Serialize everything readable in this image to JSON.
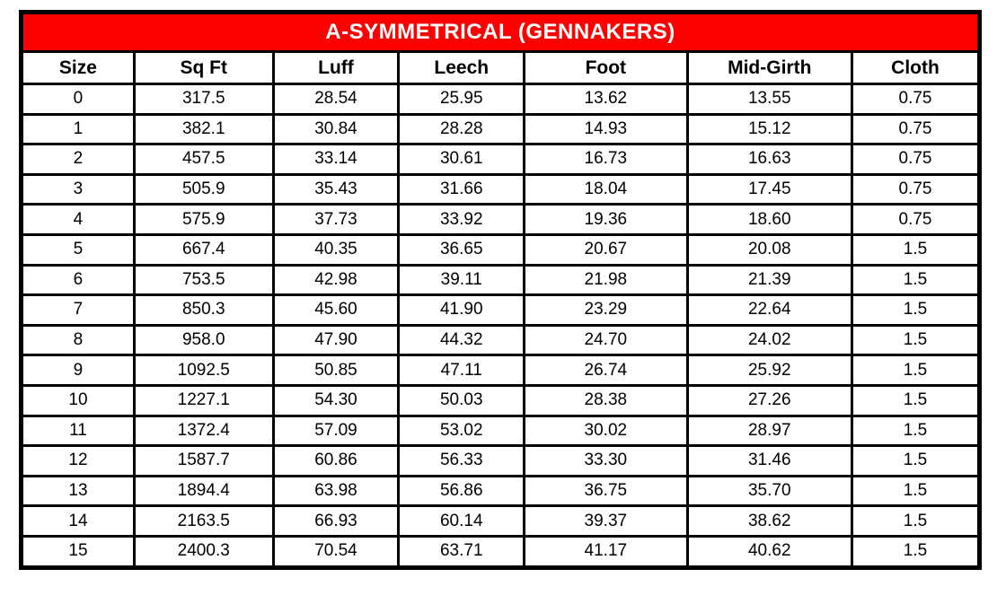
{
  "table": {
    "title": "A-SYMMETRICAL (GENNAKERS)",
    "title_bg_color": "#fd0000",
    "title_text_color": "#ffffff",
    "border_color": "#000000",
    "columns": [
      "Size",
      "Sq Ft",
      "Luff",
      "Leech",
      "Foot",
      "Mid-Girth",
      "Cloth"
    ],
    "column_widths_pct": [
      11.8,
      14.5,
      13.1,
      13.1,
      17.0,
      17.2,
      13.3
    ],
    "rows": [
      [
        "0",
        "317.5",
        "28.54",
        "25.95",
        "13.62",
        "13.55",
        "0.75"
      ],
      [
        "1",
        "382.1",
        "30.84",
        "28.28",
        "14.93",
        "15.12",
        "0.75"
      ],
      [
        "2",
        "457.5",
        "33.14",
        "30.61",
        "16.73",
        "16.63",
        "0.75"
      ],
      [
        "3",
        "505.9",
        "35.43",
        "31.66",
        "18.04",
        "17.45",
        "0.75"
      ],
      [
        "4",
        "575.9",
        "37.73",
        "33.92",
        "19.36",
        "18.60",
        "0.75"
      ],
      [
        "5",
        "667.4",
        "40.35",
        "36.65",
        "20.67",
        "20.08",
        "1.5"
      ],
      [
        "6",
        "753.5",
        "42.98",
        "39.11",
        "21.98",
        "21.39",
        "1.5"
      ],
      [
        "7",
        "850.3",
        "45.60",
        "41.90",
        "23.29",
        "22.64",
        "1.5"
      ],
      [
        "8",
        "958.0",
        "47.90",
        "44.32",
        "24.70",
        "24.02",
        "1.5"
      ],
      [
        "9",
        "1092.5",
        "50.85",
        "47.11",
        "26.74",
        "25.92",
        "1.5"
      ],
      [
        "10",
        "1227.1",
        "54.30",
        "50.03",
        "28.38",
        "27.26",
        "1.5"
      ],
      [
        "11",
        "1372.4",
        "57.09",
        "53.02",
        "30.02",
        "28.97",
        "1.5"
      ],
      [
        "12",
        "1587.7",
        "60.86",
        "56.33",
        "33.30",
        "31.46",
        "1.5"
      ],
      [
        "13",
        "1894.4",
        "63.98",
        "56.86",
        "36.75",
        "35.70",
        "1.5"
      ],
      [
        "14",
        "2163.5",
        "66.93",
        "60.14",
        "39.37",
        "38.62",
        "1.5"
      ],
      [
        "15",
        "2400.3",
        "70.54",
        "63.71",
        "41.17",
        "40.62",
        "1.5"
      ]
    ]
  }
}
